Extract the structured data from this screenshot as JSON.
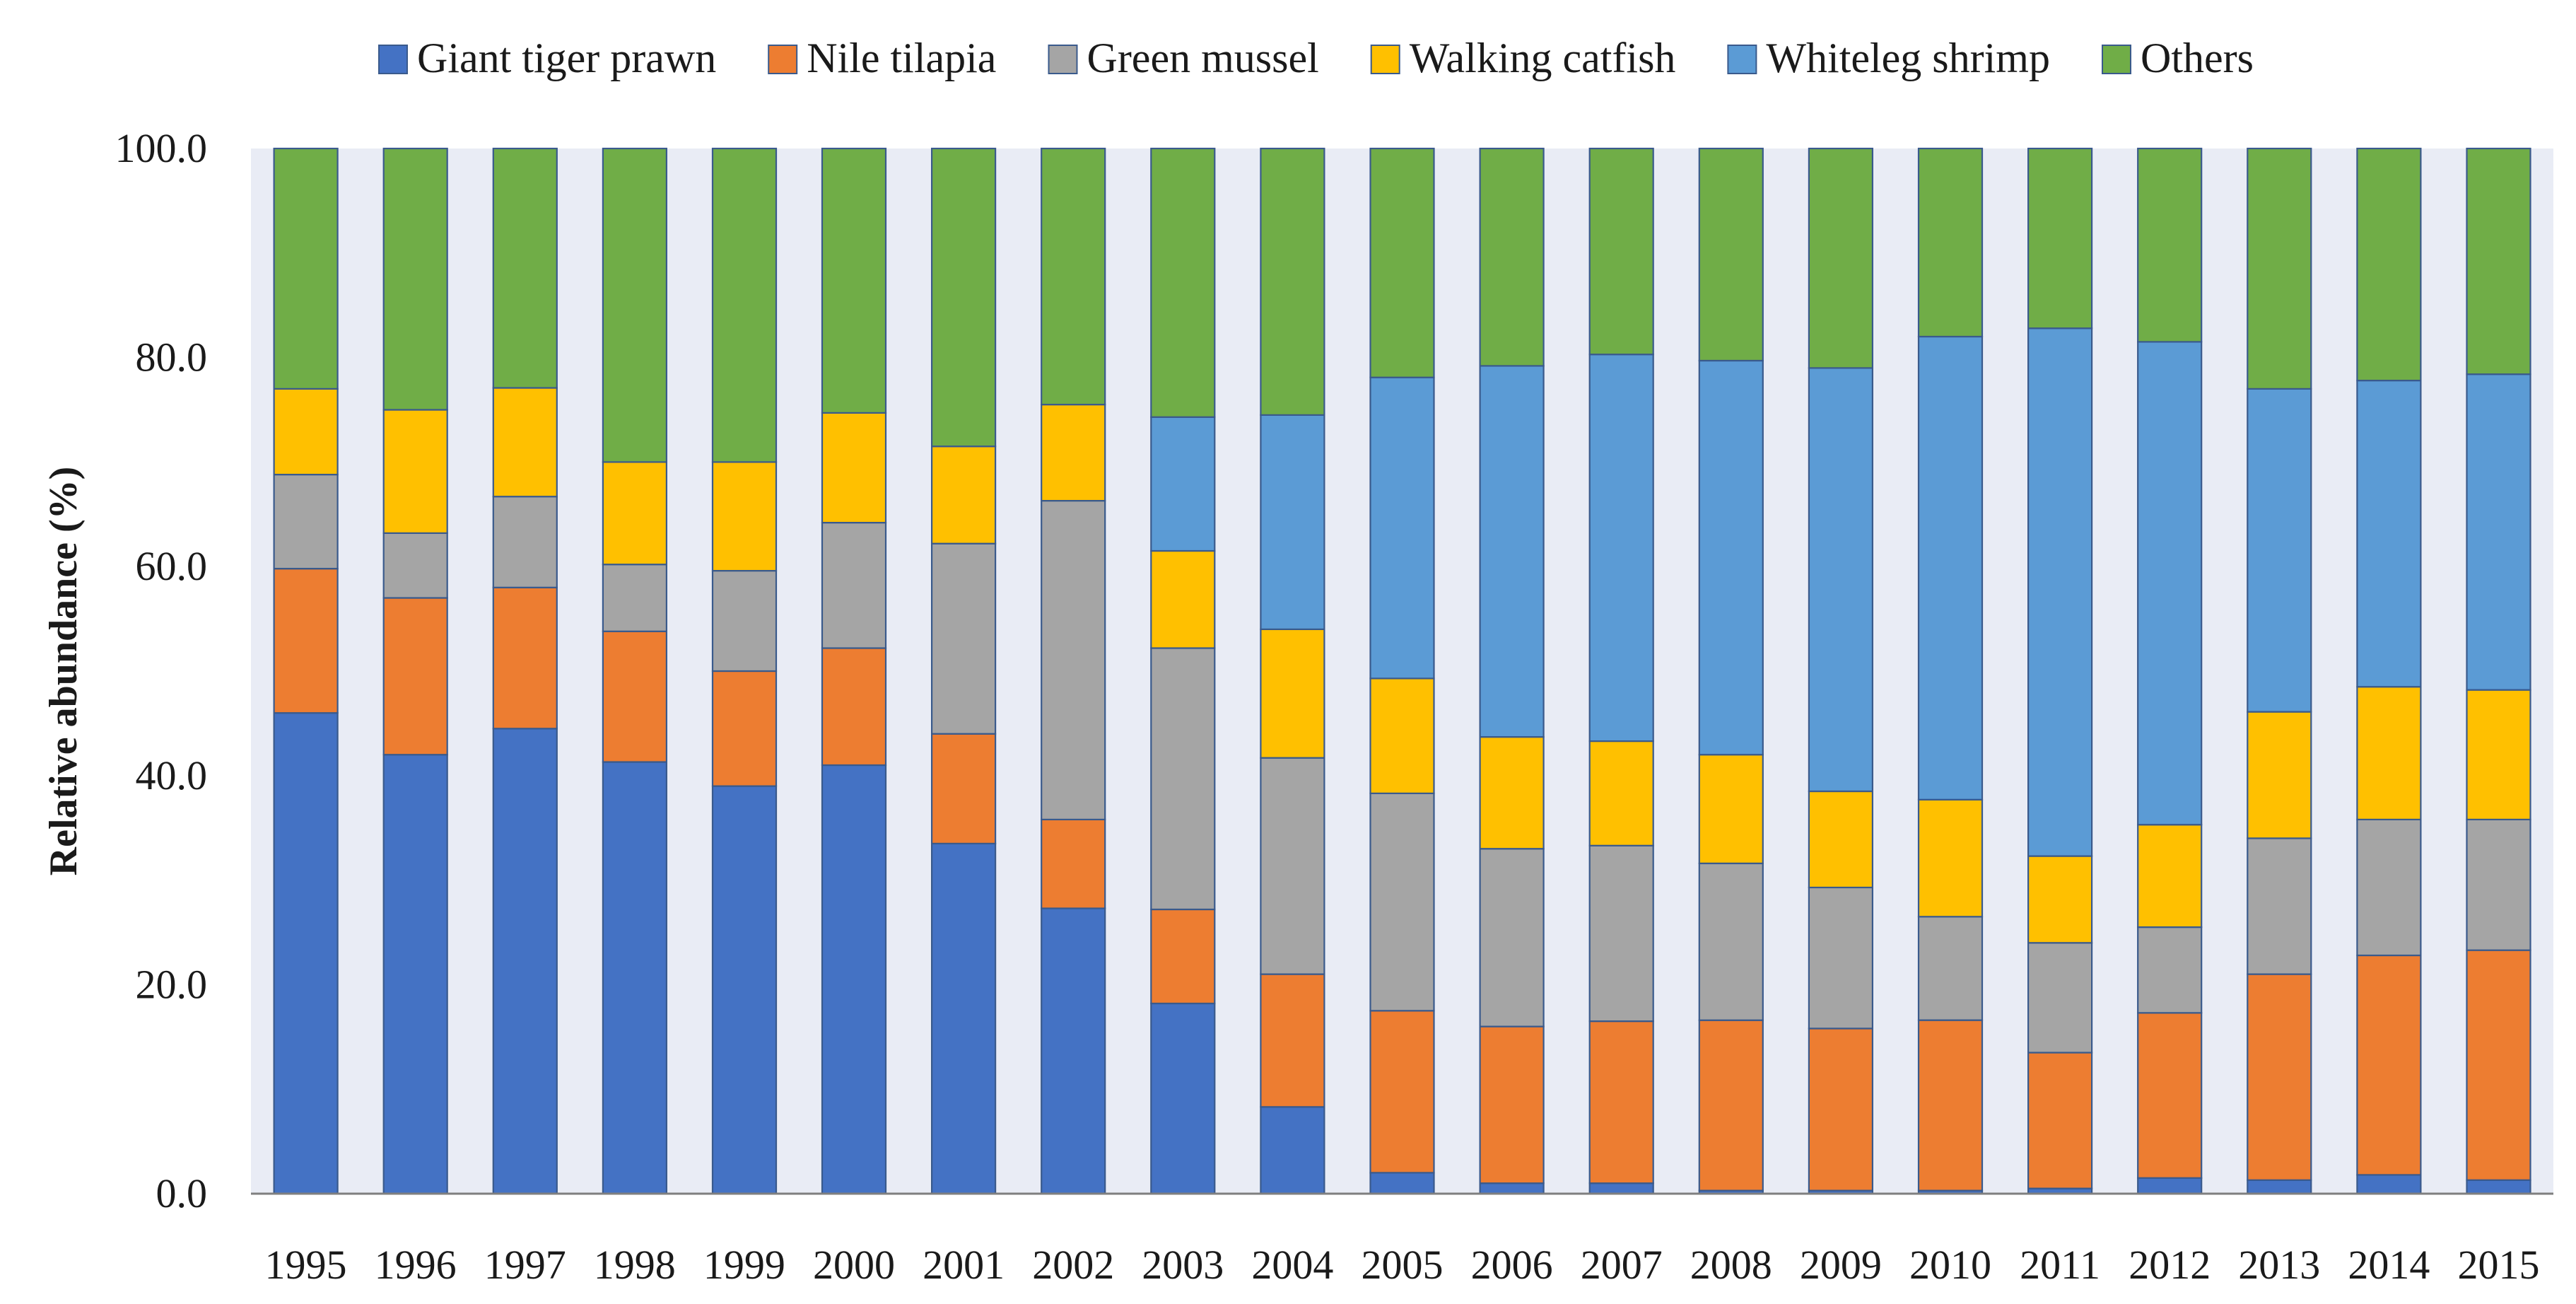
{
  "chart_data": {
    "type": "bar",
    "stacked": true,
    "title": "",
    "xlabel": "",
    "ylabel": "Relative abundance (%)",
    "ylim": [
      0,
      100
    ],
    "yticks": [
      "0.0",
      "20.0",
      "40.0",
      "60.0",
      "80.0",
      "100.0"
    ],
    "ytick_values": [
      0,
      20,
      40,
      60,
      80,
      100
    ],
    "legend_position": "top",
    "categories": [
      "1995",
      "1996",
      "1997",
      "1998",
      "1999",
      "2000",
      "2001",
      "2002",
      "2003",
      "2004",
      "2005",
      "2006",
      "2007",
      "2008",
      "2009",
      "2010",
      "2011",
      "2012",
      "2013",
      "2014",
      "2015"
    ],
    "series": [
      {
        "name": "Giant tiger prawn",
        "color": "#4472C4",
        "values": [
          46.0,
          42.0,
          44.5,
          41.3,
          39.0,
          41.0,
          33.5,
          27.3,
          18.2,
          8.3,
          2.0,
          1.0,
          1.0,
          0.3,
          0.3,
          0.3,
          0.5,
          1.5,
          1.3,
          1.8,
          1.3
        ]
      },
      {
        "name": "Nile tilapia",
        "color": "#ED7D31",
        "values": [
          13.8,
          15.0,
          13.5,
          12.5,
          11.0,
          11.2,
          10.5,
          8.5,
          9.0,
          12.7,
          15.5,
          15.0,
          15.5,
          16.3,
          15.5,
          16.3,
          13.0,
          15.8,
          19.7,
          21.0,
          22.0
        ]
      },
      {
        "name": "Green mussel",
        "color": "#A5A5A5",
        "values": [
          9.0,
          6.2,
          8.7,
          6.4,
          9.6,
          12.0,
          18.2,
          30.5,
          25.0,
          20.7,
          20.8,
          17.0,
          16.8,
          15.0,
          13.5,
          9.9,
          10.5,
          8.2,
          13.0,
          13.0,
          12.5
        ]
      },
      {
        "name": "Walking catfish",
        "color": "#FFC000",
        "values": [
          8.2,
          11.8,
          10.4,
          9.8,
          10.4,
          10.5,
          9.3,
          9.2,
          9.3,
          12.3,
          11.0,
          10.7,
          10.0,
          10.4,
          9.2,
          11.2,
          8.3,
          9.8,
          12.1,
          12.7,
          12.4
        ]
      },
      {
        "name": "Whiteleg shrimp",
        "color": "#5B9BD5",
        "values": [
          0,
          0,
          0,
          0,
          0,
          0,
          0,
          0,
          12.8,
          20.5,
          28.8,
          35.5,
          37.0,
          37.7,
          40.5,
          44.3,
          50.5,
          46.2,
          30.9,
          29.3,
          30.2
        ]
      },
      {
        "name": "Others",
        "color": "#70AD47",
        "values": [
          23.0,
          25.0,
          22.9,
          30.0,
          30.0,
          25.3,
          28.5,
          24.5,
          25.7,
          25.5,
          21.9,
          20.8,
          19.7,
          20.3,
          21.0,
          18.0,
          17.2,
          18.5,
          23.0,
          22.2,
          21.6
        ]
      }
    ]
  }
}
